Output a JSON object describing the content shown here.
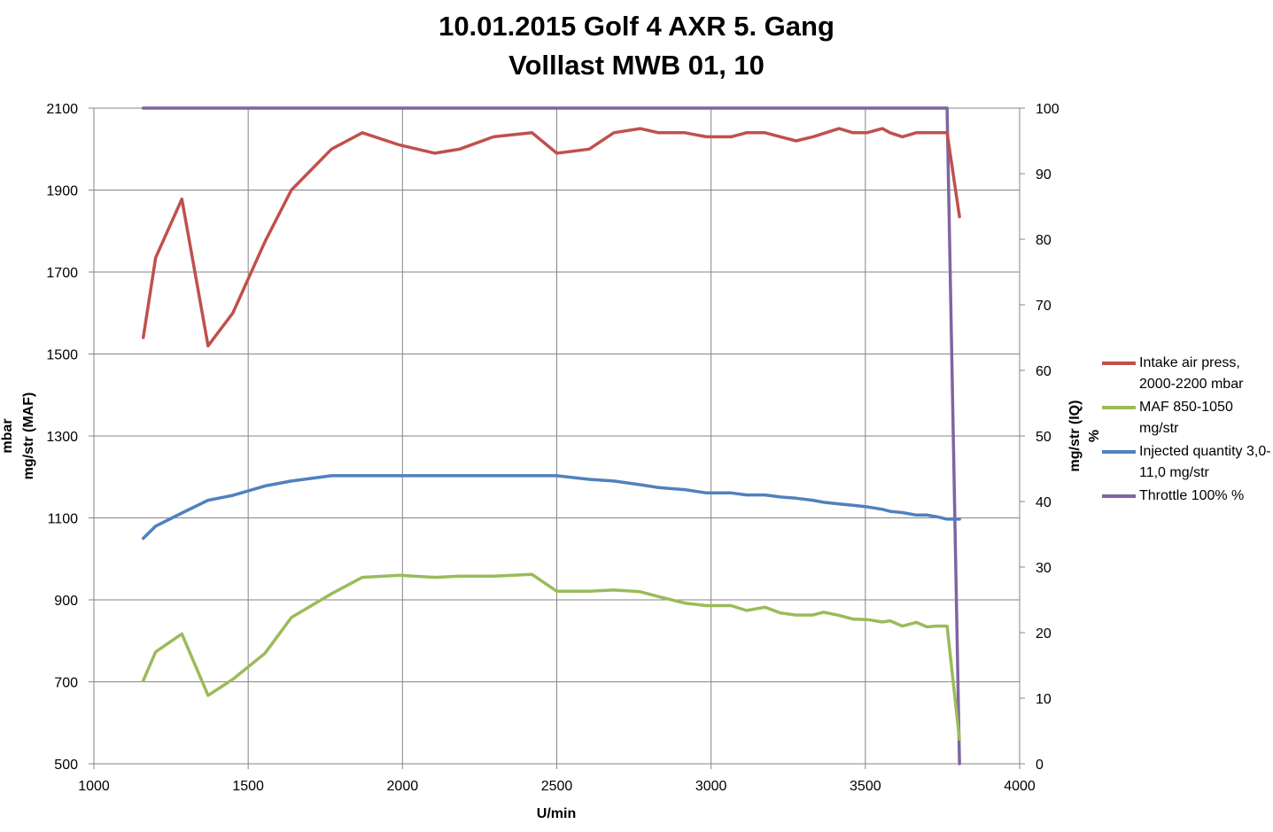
{
  "chart_data": {
    "type": "line",
    "title": "10.01.2015 Golf 4 AXR 5. Gang",
    "subtitle": "Volllast MWB 01, 10",
    "xlabel": "U/min",
    "ylabel_left_line1": "mbar",
    "ylabel_left_line2": "mg/str (MAF)",
    "ylabel_right_line1": "mg/str (IQ)",
    "ylabel_right_line2": "%",
    "xlim": [
      1000,
      4000
    ],
    "xticks": [
      1000,
      1500,
      2000,
      2500,
      3000,
      3500,
      4000
    ],
    "ylim_left": [
      500,
      2100
    ],
    "yticks_left": [
      500,
      700,
      900,
      1100,
      1300,
      1500,
      1700,
      1900,
      2100
    ],
    "ylim_right": [
      0,
      100
    ],
    "yticks_right": [
      0,
      10,
      20,
      30,
      40,
      50,
      60,
      70,
      80,
      90,
      100
    ],
    "grid": true,
    "legend_position": "right",
    "series": [
      {
        "name": "Intake air press, 2000-2200  mbar",
        "color": "#c0504d",
        "axis": "left",
        "x": [
          1160,
          1200,
          1285,
          1370,
          1450,
          1555,
          1640,
          1770,
          1870,
          1990,
          2105,
          2185,
          2295,
          2420,
          2500,
          2605,
          2685,
          2770,
          2830,
          2915,
          2985,
          3065,
          3115,
          3175,
          3275,
          3330,
          3415,
          3460,
          3505,
          3555,
          3580,
          3620,
          3665,
          3700,
          3765,
          3805
        ],
        "values": [
          1540,
          1735,
          1878,
          1520,
          1600,
          1775,
          1900,
          2000,
          2040,
          2010,
          1990,
          2000,
          2030,
          2040,
          1990,
          2000,
          2040,
          2050,
          2040,
          2040,
          2030,
          2030,
          2040,
          2040,
          2020,
          2030,
          2050,
          2040,
          2040,
          2050,
          2040,
          2030,
          2040,
          2040,
          2040,
          1835
        ]
      },
      {
        "name": "MAF 850-1050 mg/str",
        "color": "#9bbb59",
        "axis": "left",
        "x": [
          1160,
          1200,
          1285,
          1370,
          1450,
          1555,
          1640,
          1770,
          1870,
          1990,
          2105,
          2185,
          2295,
          2420,
          2500,
          2605,
          2685,
          2770,
          2830,
          2915,
          2985,
          3065,
          3115,
          3175,
          3225,
          3275,
          3330,
          3365,
          3415,
          3460,
          3505,
          3555,
          3580,
          3620,
          3665,
          3700,
          3730,
          3765,
          3805
        ],
        "values": [
          703,
          773,
          817,
          667,
          706,
          770,
          857,
          915,
          955,
          960,
          955,
          958,
          958,
          962,
          921,
          921,
          924,
          920,
          908,
          892,
          886,
          886,
          874,
          882,
          868,
          863,
          863,
          870,
          862,
          853,
          852,
          846,
          849,
          836,
          845,
          834,
          836,
          836,
          560
        ]
      },
      {
        "name": "Injected quantity 3,0-11,0  mg/str",
        "color": "#4f81bd",
        "axis": "left",
        "x": [
          1160,
          1200,
          1285,
          1370,
          1450,
          1555,
          1640,
          1770,
          1870,
          1990,
          2105,
          2185,
          2295,
          2420,
          2500,
          2605,
          2685,
          2770,
          2830,
          2915,
          2985,
          3065,
          3115,
          3175,
          3225,
          3275,
          3330,
          3365,
          3415,
          3460,
          3505,
          3555,
          3580,
          3620,
          3665,
          3700,
          3730,
          3765,
          3805
        ],
        "values": [
          1050,
          1080,
          1112,
          1143,
          1155,
          1178,
          1190,
          1203,
          1203,
          1203,
          1203,
          1203,
          1203,
          1203,
          1203,
          1194,
          1190,
          1181,
          1174,
          1169,
          1161,
          1161,
          1156,
          1156,
          1151,
          1148,
          1143,
          1138,
          1134,
          1131,
          1127,
          1121,
          1116,
          1113,
          1107,
          1107,
          1103,
          1097,
          1097
        ]
      },
      {
        "name": "Throttle 100% %",
        "color": "#8064a2",
        "axis": "right",
        "x": [
          1160,
          1200,
          1285,
          1370,
          1450,
          1555,
          1640,
          1770,
          1870,
          1990,
          2105,
          2185,
          2295,
          2420,
          2500,
          2605,
          2685,
          2770,
          2830,
          2915,
          2985,
          3065,
          3115,
          3175,
          3275,
          3330,
          3415,
          3460,
          3505,
          3555,
          3580,
          3620,
          3665,
          3700,
          3765,
          3805
        ],
        "values": [
          100,
          100,
          100,
          100,
          100,
          100,
          100,
          100,
          100,
          100,
          100,
          100,
          100,
          100,
          100,
          100,
          100,
          100,
          100,
          100,
          100,
          100,
          100,
          100,
          100,
          100,
          100,
          100,
          100,
          100,
          100,
          100,
          100,
          100,
          100,
          0
        ]
      }
    ]
  }
}
